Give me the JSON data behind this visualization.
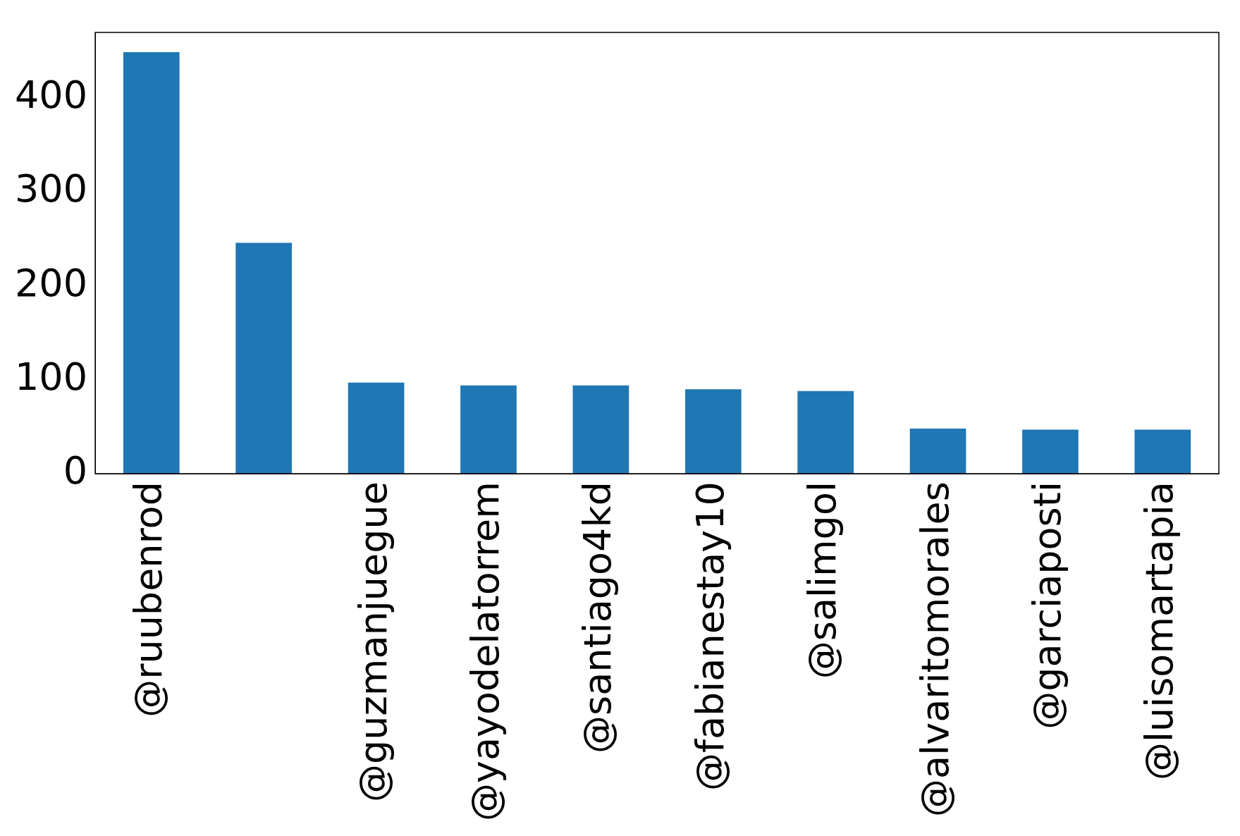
{
  "chart_data": {
    "type": "bar",
    "categories": [
      "@ruubenrod",
      null,
      "@guzmanjuegue",
      "@yayodelatorrem",
      "@santiago4kd",
      "@fabianestay10",
      "@salimgol",
      "@alvaritomorales",
      "@garciaposti",
      "@luisomartapia"
    ],
    "values": [
      449,
      246,
      97,
      94,
      94,
      90,
      88,
      48,
      47,
      47
    ],
    "color": "#1f77b4",
    "ylim": [
      0,
      470
    ],
    "yticks": [
      0,
      100,
      200,
      300,
      400
    ],
    "grid": false,
    "legend": false
  }
}
